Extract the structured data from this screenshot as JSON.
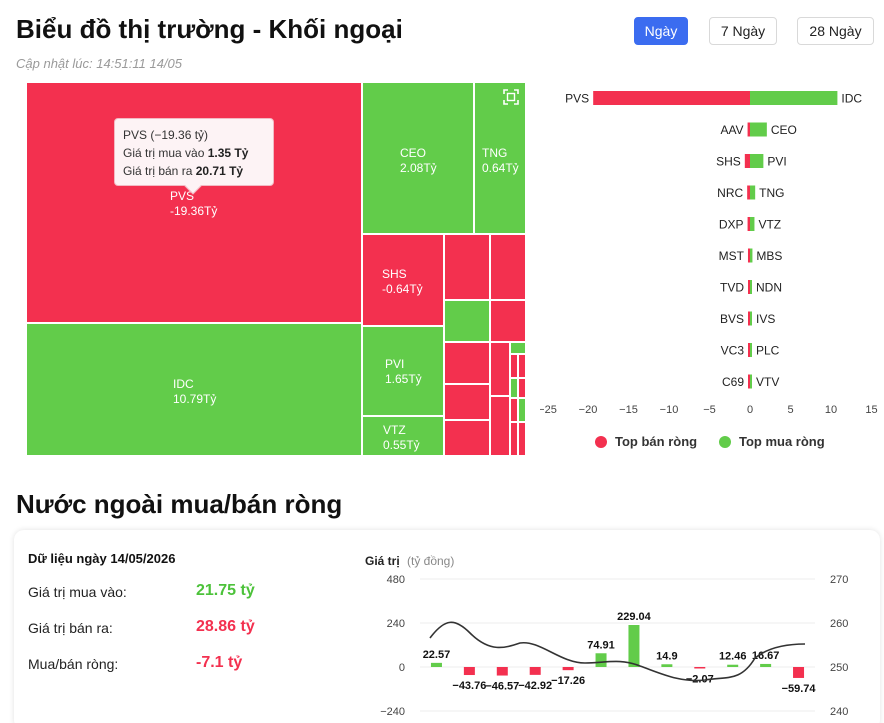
{
  "header": {
    "title": "Biểu đồ thị trường - Khối ngoại",
    "updated": "Cập nhật lúc: 14:51:11 14/05"
  },
  "range_tabs": [
    {
      "label": "Ngày",
      "active": true
    },
    {
      "label": "7 Ngày",
      "active": false
    },
    {
      "label": "28 Ngày",
      "active": false
    }
  ],
  "treemap": {
    "tiles": [
      {
        "symbol": "PVS",
        "value": "-19.36Tỷ",
        "side": "sell"
      },
      {
        "symbol": "IDC",
        "value": "10.79Tỷ",
        "side": "buy"
      },
      {
        "symbol": "CEO",
        "value": "2.08Tỷ",
        "side": "buy"
      },
      {
        "symbol": "TNG",
        "value": "0.64Tỷ",
        "side": "buy"
      },
      {
        "symbol": "SHS",
        "value": "-0.64Tỷ",
        "side": "sell"
      },
      {
        "symbol": "PVI",
        "value": "1.65Tỷ",
        "side": "buy"
      },
      {
        "symbol": "VTZ",
        "value": "0.55Tỷ",
        "side": "buy"
      }
    ],
    "tooltip": {
      "title": "PVS (−19.36 tỷ)",
      "buy_label": "Giá trị mua vào",
      "buy_value": "1.35 Tỷ",
      "sell_label": "Giá trị bán ra",
      "sell_value": "20.71 Tỷ"
    }
  },
  "ranking_chart": {
    "pairs": [
      {
        "sell": "PVS",
        "sell_value": -19.36,
        "buy": "IDC",
        "buy_value": 10.79
      },
      {
        "sell": "AAV",
        "sell_value": -0.3,
        "buy": "CEO",
        "buy_value": 2.08
      },
      {
        "sell": "SHS",
        "sell_value": -0.64,
        "buy": "PVI",
        "buy_value": 1.65
      },
      {
        "sell": "NRC",
        "sell_value": -0.35,
        "buy": "TNG",
        "buy_value": 0.64
      },
      {
        "sell": "DXP",
        "sell_value": -0.3,
        "buy": "VTZ",
        "buy_value": 0.55
      },
      {
        "sell": "MST",
        "sell_value": -0.25,
        "buy": "MBS",
        "buy_value": 0.3
      },
      {
        "sell": "TVD",
        "sell_value": -0.2,
        "buy": "NDN",
        "buy_value": 0.1
      },
      {
        "sell": "BVS",
        "sell_value": -0.15,
        "buy": "IVS",
        "buy_value": 0.1
      },
      {
        "sell": "VC3",
        "sell_value": -0.1,
        "buy": "PLC",
        "buy_value": 0.08
      },
      {
        "sell": "C69",
        "sell_value": -0.05,
        "buy": "VTV",
        "buy_value": 0.05
      }
    ],
    "x_ticks": [
      "−25",
      "−20",
      "−15",
      "−10",
      "−5",
      "0",
      "5",
      "10",
      "15"
    ],
    "legend_sell": "Top bán ròng",
    "legend_buy": "Top mua ròng",
    "sell_color": "#f3304f",
    "buy_color": "#62cc4a"
  },
  "net_section": {
    "title": "Nước ngoài mua/bán ròng",
    "date_label": "Dữ liệu ngày 14/05/2026",
    "buy_label": "Giá trị mua vào:",
    "buy_value": "21.75 tỷ",
    "sell_label": "Giá trị bán ra:",
    "sell_value": "28.86 tỷ",
    "net_label": "Mua/bán ròng:",
    "net_value": "-7.1 tỷ"
  },
  "chart_data": {
    "type": "bar",
    "ylabel": "Giá trị",
    "ylabel_unit": "(tỷ đồng)",
    "ylim": [
      -240,
      480
    ],
    "y_ticks": [
      "480",
      "240",
      "0",
      "−240"
    ],
    "y2_ticks": [
      "270",
      "260",
      "250",
      "240"
    ],
    "values": [
      22.57,
      -43.76,
      -46.57,
      -42.92,
      -17.26,
      74.91,
      229.04,
      14.9,
      -2.07,
      12.46,
      16.67,
      -59.74
    ],
    "labels": [
      "22.57",
      "−43.76",
      "−46.57",
      "−42.92",
      "−17.26",
      "74.91",
      "229.04",
      "14.9",
      "−2.07",
      "12.46",
      "16.67",
      "−59.74"
    ]
  }
}
